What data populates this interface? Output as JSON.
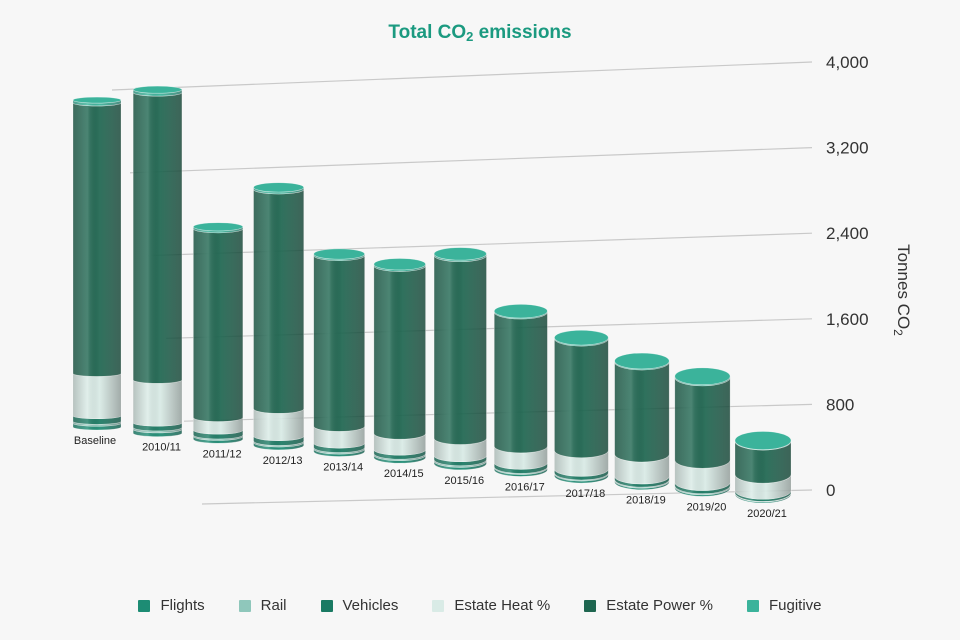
{
  "chart_data": {
    "type": "bar",
    "stacked": true,
    "style": "3d-cylinder",
    "title": "Total CO",
    "title_subscript": "2",
    "title_suffix": " emissions",
    "ylabel": "Tonnes CO",
    "ylabel_subscript": "2",
    "ylim": [
      0,
      4000
    ],
    "yticks": [
      "0",
      "800",
      "1,600",
      "2,400",
      "3,200",
      "4,000"
    ],
    "grid": true,
    "legend_position": "bottom",
    "categories": [
      "Baseline",
      "2010/11",
      "2011/12",
      "2012/13",
      "2013/14",
      "2014/15",
      "2015/16",
      "2016/17",
      "2017/18",
      "2018/19",
      "2019/20",
      "2020/21"
    ],
    "series": [
      {
        "name": "Flights",
        "color": "#1d8c74",
        "values": [
          40,
          40,
          30,
          30,
          25,
          25,
          25,
          20,
          20,
          15,
          15,
          10
        ]
      },
      {
        "name": "Rail",
        "color": "#8fc7bb",
        "values": [
          20,
          20,
          15,
          15,
          15,
          15,
          15,
          10,
          10,
          10,
          10,
          5
        ]
      },
      {
        "name": "Vehicles",
        "color": "#1a7a63",
        "values": [
          60,
          50,
          50,
          50,
          45,
          40,
          40,
          40,
          35,
          30,
          30,
          20
        ]
      },
      {
        "name": "Estate Heat %",
        "color": "#d9ebe6",
        "values": [
          450,
          450,
          130,
          280,
          170,
          160,
          170,
          160,
          180,
          210,
          210,
          150
        ]
      },
      {
        "name": "Estate Power %",
        "color": "#1e6650",
        "values": [
          2880,
          3020,
          1960,
          2250,
          1730,
          1680,
          1810,
          1310,
          1080,
          880,
          780,
          310
        ]
      },
      {
        "name": "Fugitive",
        "color": "#3bb39b",
        "values": [
          30,
          30,
          20,
          20,
          15,
          15,
          15,
          10,
          10,
          10,
          10,
          5
        ]
      }
    ]
  }
}
